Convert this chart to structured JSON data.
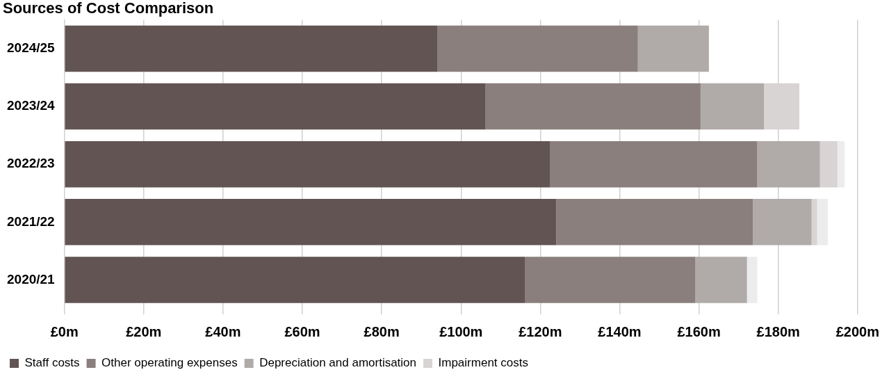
{
  "chart_data": {
    "type": "bar",
    "orientation": "horizontal",
    "stacked": true,
    "title": "Sources of Cost Comparison",
    "categories": [
      "2024/25",
      "2023/24",
      "2022/23",
      "2021/22",
      "2020/21"
    ],
    "series": [
      {
        "name": "Staff costs",
        "color": "#625453",
        "values": [
          94.0,
          106.2,
          122.5,
          124.0,
          116.2
        ]
      },
      {
        "name": "Other operating expenses",
        "color": "#8a7f7d",
        "values": [
          50.6,
          54.2,
          52.2,
          49.6,
          42.9
        ]
      },
      {
        "name": "Depreciation and amortisation",
        "color": "#b0aaa9",
        "values": [
          17.9,
          16.0,
          15.8,
          14.8,
          13.0
        ]
      },
      {
        "name": "Impairment costs",
        "color": "#d8d4d3",
        "values": [
          null,
          8.9,
          4.4,
          1.4,
          null
        ]
      },
      {
        "color": "#ececec",
        "values": [
          null,
          null,
          1.8,
          2.7,
          2.6
        ]
      }
    ],
    "xlim": [
      0,
      200
    ],
    "xticks": [
      {
        "value": 0,
        "label": "£0m"
      },
      {
        "value": 20,
        "label": "£20m"
      },
      {
        "value": 40,
        "label": "£40m"
      },
      {
        "value": 60,
        "label": "£60m"
      },
      {
        "value": 80,
        "label": "£80m"
      },
      {
        "value": 100,
        "label": "£100m"
      },
      {
        "value": 120,
        "label": "£120m"
      },
      {
        "value": 140,
        "label": "£140m"
      },
      {
        "value": 160,
        "label": "£160m"
      },
      {
        "value": 180,
        "label": "£180m"
      },
      {
        "value": 200,
        "label": "£200m"
      }
    ],
    "grid": "x",
    "legend": "bottom"
  }
}
